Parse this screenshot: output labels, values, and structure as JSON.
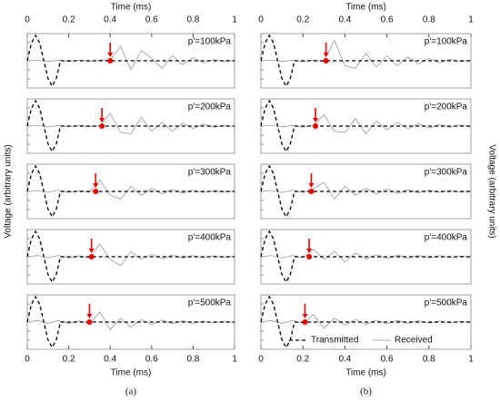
{
  "chart_data": [
    {
      "type": "line",
      "caption": "(a)",
      "xlabel": "Time (ms)",
      "ylabel": "Voltage (arbitrary units)",
      "xlim": [
        0,
        1
      ],
      "xticks": [
        0,
        0.2,
        0.4,
        0.6,
        0.8,
        1
      ],
      "ylim": [
        -1,
        1
      ],
      "x": [
        0,
        0.05,
        0.1,
        0.15,
        0.2,
        0.25,
        0.3,
        0.35,
        0.4,
        0.45,
        0.5,
        0.55,
        0.6,
        0.65,
        0.7,
        0.75,
        0.8,
        0.85,
        0.9,
        0.95,
        1
      ],
      "transmitted_x": [
        0,
        0.02,
        0.04,
        0.06,
        0.08,
        0.1,
        0.12,
        0.14,
        0.16,
        1
      ],
      "transmitted": [
        0,
        0.7,
        1,
        0.7,
        0,
        -0.7,
        -1,
        -0.7,
        0,
        0
      ],
      "panels": [
        {
          "label": "p'=100kPa",
          "arrival": 0.4,
          "values": [
            0,
            0.03,
            -0.02,
            0.02,
            -0.03,
            0.02,
            -0.02,
            0.03,
            0.04,
            0.55,
            -0.35,
            0.4,
            0.1,
            -0.3,
            0.2,
            -0.15,
            0.12,
            -0.08,
            0.05,
            -0.03,
            0.02
          ]
        },
        {
          "label": "p'=200kPa",
          "arrival": 0.36,
          "values": [
            0,
            0.03,
            -0.03,
            0.02,
            -0.02,
            0.03,
            -0.02,
            0.02,
            0.5,
            -0.25,
            -0.3,
            0.35,
            -0.2,
            0.15,
            -0.2,
            0.12,
            -0.1,
            0.08,
            -0.05,
            0.03,
            -0.02
          ]
        },
        {
          "label": "p'=300kPa",
          "arrival": 0.33,
          "values": [
            0,
            0.04,
            -0.03,
            0.05,
            -0.04,
            0.03,
            -0.03,
            0.45,
            -0.15,
            -0.3,
            0.2,
            -0.15,
            0.12,
            -0.1,
            0.08,
            -0.06,
            0.05,
            -0.04,
            0.04,
            -0.03,
            0.02
          ]
        },
        {
          "label": "p'=400kPa",
          "arrival": 0.31,
          "values": [
            0,
            0.05,
            -0.04,
            0.05,
            -0.05,
            0.04,
            -0.05,
            0.5,
            -0.1,
            -0.35,
            0.2,
            -0.1,
            0.1,
            -0.08,
            0.07,
            -0.05,
            0.05,
            -0.04,
            0.03,
            -0.03,
            0.02
          ]
        },
        {
          "label": "p'=500kPa",
          "arrival": 0.3,
          "values": [
            0,
            0.06,
            -0.05,
            0.06,
            -0.05,
            0.05,
            -0.06,
            0.4,
            -0.3,
            0.15,
            -0.2,
            0.1,
            -0.1,
            0.08,
            -0.06,
            0.05,
            -0.05,
            0.04,
            -0.03,
            0.03,
            -0.02
          ]
        }
      ]
    },
    {
      "type": "line",
      "caption": "(b)",
      "xlabel": "Time (ms)",
      "ylabel": "Voltage (arbitrary units)",
      "xlim": [
        0,
        1
      ],
      "xticks": [
        0,
        0.2,
        0.4,
        0.6,
        0.8,
        1
      ],
      "ylim": [
        -1,
        1
      ],
      "x": [
        0,
        0.05,
        0.1,
        0.15,
        0.2,
        0.25,
        0.3,
        0.35,
        0.4,
        0.45,
        0.5,
        0.55,
        0.6,
        0.65,
        0.7,
        0.75,
        0.8,
        0.85,
        0.9,
        0.95,
        1
      ],
      "transmitted_x": [
        0,
        0.02,
        0.04,
        0.06,
        0.08,
        0.1,
        0.12,
        0.14,
        0.16,
        1
      ],
      "transmitted": [
        0,
        0.7,
        1,
        0.7,
        0,
        -0.7,
        -1,
        -0.7,
        0,
        0
      ],
      "legend": [
        "Transmitted",
        "Received"
      ],
      "panels": [
        {
          "label": "p'=100kPa",
          "arrival": 0.31,
          "values": [
            0,
            0.03,
            -0.02,
            0.02,
            -0.03,
            0.02,
            -0.03,
            0.8,
            -0.2,
            -0.3,
            0.3,
            -0.25,
            0.2,
            -0.2,
            0.15,
            -0.12,
            0.1,
            -0.08,
            0.06,
            -0.04,
            0.03
          ]
        },
        {
          "label": "p'=200kPa",
          "arrival": 0.26,
          "values": [
            0,
            0.03,
            -0.03,
            0.02,
            -0.04,
            0.03,
            0.45,
            -0.2,
            -0.25,
            0.3,
            -0.3,
            0.2,
            -0.15,
            0.15,
            -0.1,
            0.1,
            -0.08,
            0.06,
            -0.05,
            0.04,
            -0.03
          ]
        },
        {
          "label": "p'=300kPa",
          "arrival": 0.24,
          "values": [
            0,
            0.04,
            -0.04,
            0.05,
            -0.04,
            0.1,
            0.35,
            -0.3,
            0.2,
            -0.15,
            0.12,
            -0.1,
            0.1,
            -0.08,
            0.06,
            -0.05,
            0.05,
            -0.04,
            0.04,
            -0.03,
            0.02
          ]
        },
        {
          "label": "p'=400kPa",
          "arrival": 0.23,
          "values": [
            0,
            0.05,
            -0.05,
            0.05,
            -0.04,
            0.3,
            -0.1,
            0.2,
            -0.2,
            0.15,
            -0.1,
            0.08,
            -0.08,
            0.06,
            -0.05,
            0.05,
            -0.04,
            0.04,
            -0.03,
            0.03,
            -0.02
          ]
        },
        {
          "label": "p'=500kPa",
          "arrival": 0.21,
          "values": [
            0,
            0.06,
            -0.05,
            0.06,
            -0.05,
            0.3,
            -0.25,
            0.15,
            -0.12,
            0.1,
            -0.1,
            0.08,
            -0.07,
            0.06,
            -0.05,
            0.05,
            -0.04,
            0.04,
            -0.03,
            0.03,
            -0.02
          ]
        }
      ]
    }
  ]
}
